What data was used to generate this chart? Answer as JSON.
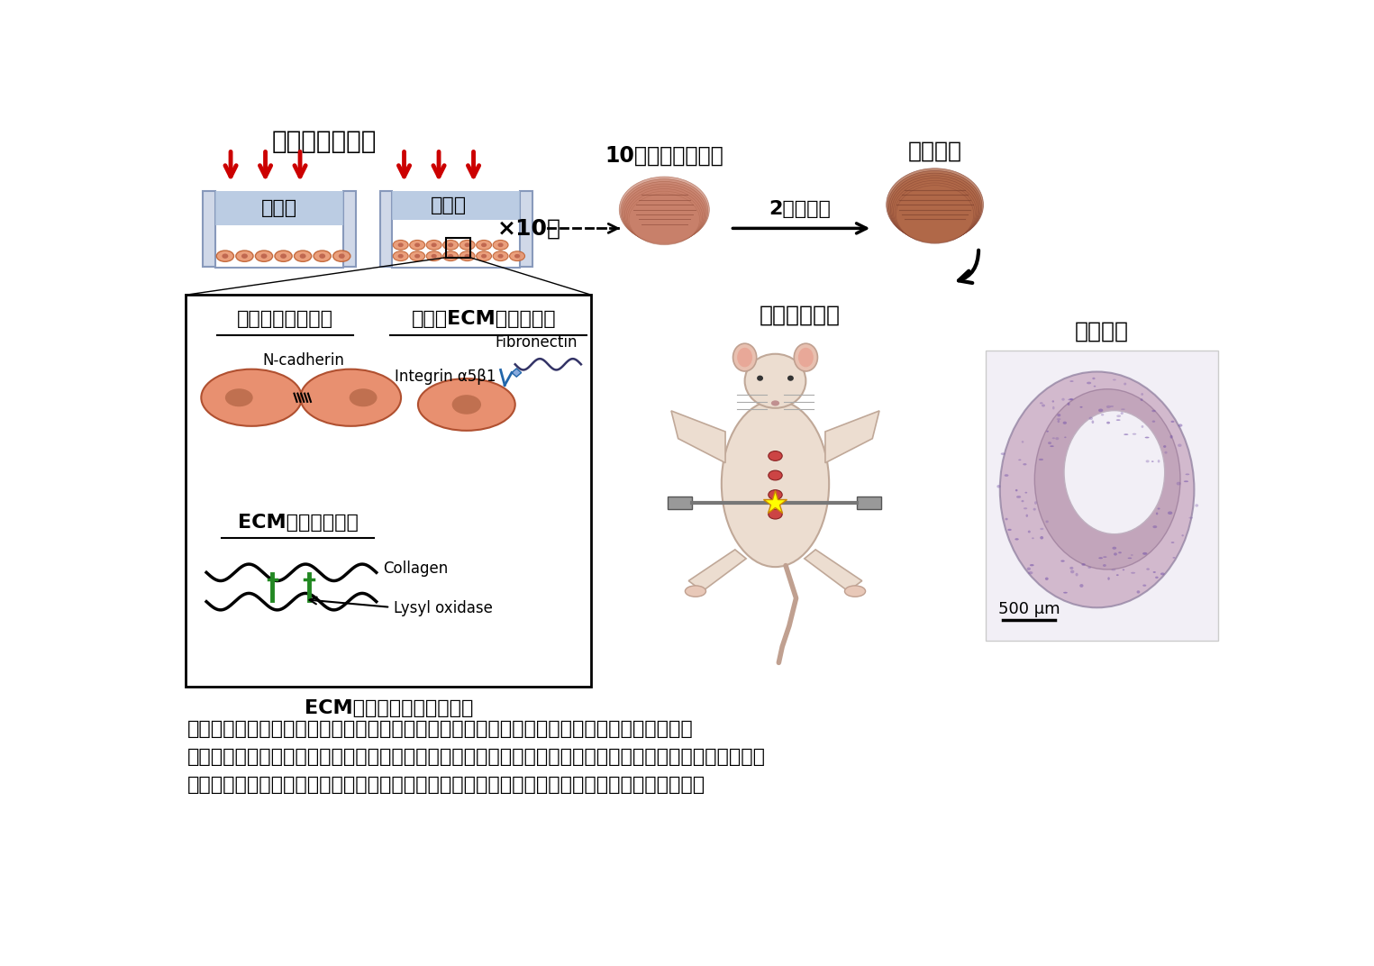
{
  "bg_color": "#ffffff",
  "title_top": "周期的加圧培養",
  "label_box1": "低酸素",
  "label_box2": "低酸素",
  "label_x10": "×10回",
  "label_10layer": "10層の細胞シート",
  "label_2week": "2週間培養",
  "label_artificial": "人工血管",
  "label_animal": "動物への移植",
  "label_vessel": "血管組織",
  "label_scale": "500 μm",
  "label_ecm": "ECM：細胞外マトリックス",
  "label_cell_bond": "細胞間結合の強化",
  "label_ecm_bond": "細胞とECMの結合強化",
  "label_ecm_ecm": "ECM間の結合強化",
  "label_ncadherin": "N-cadherin",
  "label_fibronectin": "Fibronectin",
  "label_integrin": "Integrin α5β1",
  "label_collagen": "Collagen",
  "label_lysyl": "Lysyl oxidase",
  "caption_line1": "図　培養細胞のみから人工血管を作製する工程図。低酸素環境と周期的加圧で培養細胞を刺激",
  "caption_line2": "することで、細胞と細胞外マトリックスが密なネットワークを構築し、人工血管を作製することを可能にし",
  "caption_line3": "た。作製した人工血管を動物の血管に移植することに成功し、移植後長期の安全性を確認した。",
  "arrow_color": "#cc0000",
  "cell_color": "#e8956e",
  "cell_border_color": "#c06030"
}
